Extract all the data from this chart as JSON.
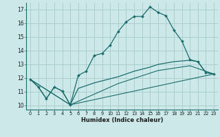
{
  "xlabel": "Humidex (Indice chaleur)",
  "bg_color": "#cce8e8",
  "grid_color": "#aacfcf",
  "line_color": "#1a6b6b",
  "xlim": [
    -0.5,
    23.5
  ],
  "ylim": [
    9.7,
    17.5
  ],
  "yticks": [
    10,
    11,
    12,
    13,
    14,
    15,
    16,
    17
  ],
  "xticks": [
    0,
    1,
    2,
    3,
    4,
    5,
    6,
    7,
    8,
    9,
    10,
    11,
    12,
    13,
    14,
    15,
    16,
    17,
    18,
    19,
    20,
    21,
    22,
    23
  ],
  "line1_x": [
    0,
    1,
    2,
    3,
    4,
    5,
    6,
    7,
    8,
    9,
    10,
    11,
    12,
    13,
    14,
    15,
    16,
    17,
    18,
    19,
    20,
    21,
    22,
    23
  ],
  "line1_y": [
    11.9,
    11.35,
    10.5,
    11.35,
    11.05,
    10.05,
    12.2,
    12.5,
    13.65,
    13.8,
    14.4,
    15.4,
    16.1,
    16.5,
    16.5,
    17.2,
    16.8,
    16.55,
    15.5,
    14.7,
    13.35,
    13.2,
    12.4,
    12.3
  ],
  "line2_x": [
    0,
    1,
    2,
    3,
    4,
    5,
    6,
    7,
    8,
    9,
    10,
    11,
    12,
    13,
    14,
    15,
    16,
    17,
    18,
    19,
    20,
    21,
    22,
    23
  ],
  "line2_y": [
    11.9,
    11.35,
    10.5,
    11.35,
    11.05,
    10.05,
    11.25,
    11.45,
    11.65,
    11.8,
    11.95,
    12.1,
    12.3,
    12.5,
    12.65,
    12.8,
    13.0,
    13.1,
    13.2,
    13.25,
    13.3,
    13.2,
    12.4,
    12.3
  ],
  "line3_x": [
    0,
    5,
    23
  ],
  "line3_y": [
    11.9,
    10.05,
    12.3
  ],
  "line4_x": [
    0,
    5,
    11,
    16,
    20,
    23
  ],
  "line4_y": [
    11.9,
    10.05,
    11.6,
    12.55,
    12.9,
    12.3
  ]
}
